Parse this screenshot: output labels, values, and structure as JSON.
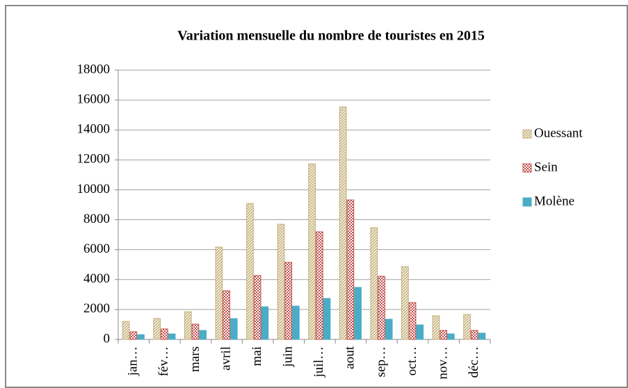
{
  "chart_data": {
    "type": "bar",
    "title": "Variation mensuelle du nombre de touristes en 2015",
    "categories": [
      "jan…",
      "fév…",
      "mars",
      "avril",
      "mai",
      "juin",
      "juil…",
      "aout",
      "sep…",
      "oct…",
      "nov…",
      "déc…"
    ],
    "series": [
      {
        "name": "Ouessant",
        "color": "#c4b07a",
        "values": [
          1200,
          1400,
          1850,
          6170,
          9090,
          7700,
          11730,
          15540,
          7470,
          4870,
          1580,
          1670
        ]
      },
      {
        "name": "Sein",
        "color": "#c0504d",
        "values": [
          510,
          700,
          1020,
          3250,
          4270,
          5150,
          7190,
          9320,
          4220,
          2460,
          600,
          600
        ]
      },
      {
        "name": "Molène",
        "color": "#4bacc6",
        "values": [
          320,
          370,
          600,
          1390,
          2180,
          2230,
          2740,
          3480,
          1350,
          970,
          370,
          420
        ]
      }
    ],
    "ylim": [
      0,
      18000
    ],
    "yticks": [
      0,
      2000,
      4000,
      6000,
      8000,
      10000,
      12000,
      14000,
      16000,
      18000
    ],
    "grid": true,
    "legend": "right"
  }
}
